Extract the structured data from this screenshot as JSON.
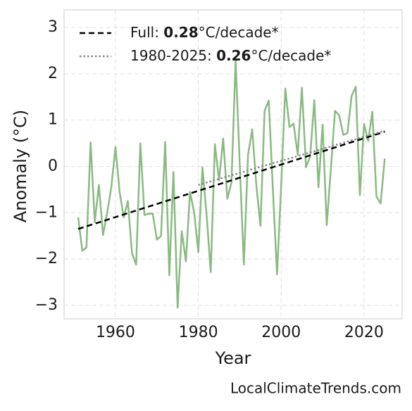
{
  "chart_data": {
    "type": "line",
    "x_label": "Year",
    "y_label": "Anomaly (°C)",
    "x": [
      1951,
      1952,
      1953,
      1954,
      1955,
      1956,
      1957,
      1958,
      1959,
      1960,
      1961,
      1962,
      1963,
      1964,
      1965,
      1966,
      1967,
      1968,
      1969,
      1970,
      1971,
      1972,
      1973,
      1974,
      1975,
      1976,
      1977,
      1978,
      1979,
      1980,
      1981,
      1982,
      1983,
      1984,
      1985,
      1986,
      1987,
      1988,
      1989,
      1990,
      1991,
      1992,
      1993,
      1994,
      1995,
      1996,
      1997,
      1998,
      1999,
      2000,
      2001,
      2002,
      2003,
      2004,
      2005,
      2006,
      2007,
      2008,
      2009,
      2010,
      2011,
      2012,
      2013,
      2014,
      2015,
      2016,
      2017,
      2018,
      2019,
      2020,
      2021,
      2022,
      2023,
      2024,
      2025
    ],
    "series": [
      {
        "color": "#8aba82",
        "values": [
          -1.1,
          -1.82,
          -1.75,
          0.52,
          -1.2,
          -0.4,
          -1.48,
          -1.0,
          -0.45,
          0.42,
          -0.55,
          -1.1,
          -0.75,
          -1.88,
          -2.12,
          0.5,
          -1.05,
          -1.02,
          -1.02,
          -1.58,
          -1.5,
          0.53,
          -2.35,
          -0.12,
          -3.05,
          -1.4,
          -2.05,
          -0.55,
          -1.0,
          -1.85,
          -0.02,
          -1.05,
          -2.28,
          0.48,
          -0.3,
          0.6,
          -0.7,
          -0.35,
          2.3,
          0.05,
          -2.12,
          0.25,
          0.8,
          -0.4,
          -1.28,
          1.2,
          1.42,
          -0.5,
          -2.33,
          -0.42,
          1.68,
          0.85,
          0.92,
          0.25,
          1.7,
          -0.02,
          0.22,
          1.43,
          -0.45,
          0.9,
          -1.27,
          -0.05,
          1.2,
          1.1,
          0.68,
          0.72,
          1.52,
          1.72,
          -0.62,
          0.92,
          0.55,
          1.18,
          -0.65,
          -0.8,
          0.17
        ]
      }
    ],
    "trends": [
      {
        "x": [
          1951,
          2025
        ],
        "values": [
          -1.35,
          0.75
        ],
        "color": "#000000",
        "dash": "dashed",
        "label": [
          "Full: ",
          "0.28",
          "°C/decade*"
        ]
      },
      {
        "x": [
          1980,
          2025
        ],
        "values": [
          -0.4,
          0.77
        ],
        "color": "#888888",
        "dash": "dotted",
        "label": [
          "1980-2025: ",
          "0.26",
          "°C/decade*"
        ]
      }
    ],
    "xlim": [
      1947.6,
      2029.2
    ],
    "ylim": [
      -3.29,
      3.38
    ],
    "xticks": [
      1960,
      1980,
      2000,
      2020
    ],
    "yticks": [
      {
        "value": -3,
        "label": "−3"
      },
      {
        "value": -2,
        "label": "−2"
      },
      {
        "value": -1,
        "label": "−1"
      },
      0,
      1,
      2,
      3
    ],
    "grid": true,
    "legend": "upper left",
    "footer": "LocalClimateTrends.com"
  }
}
